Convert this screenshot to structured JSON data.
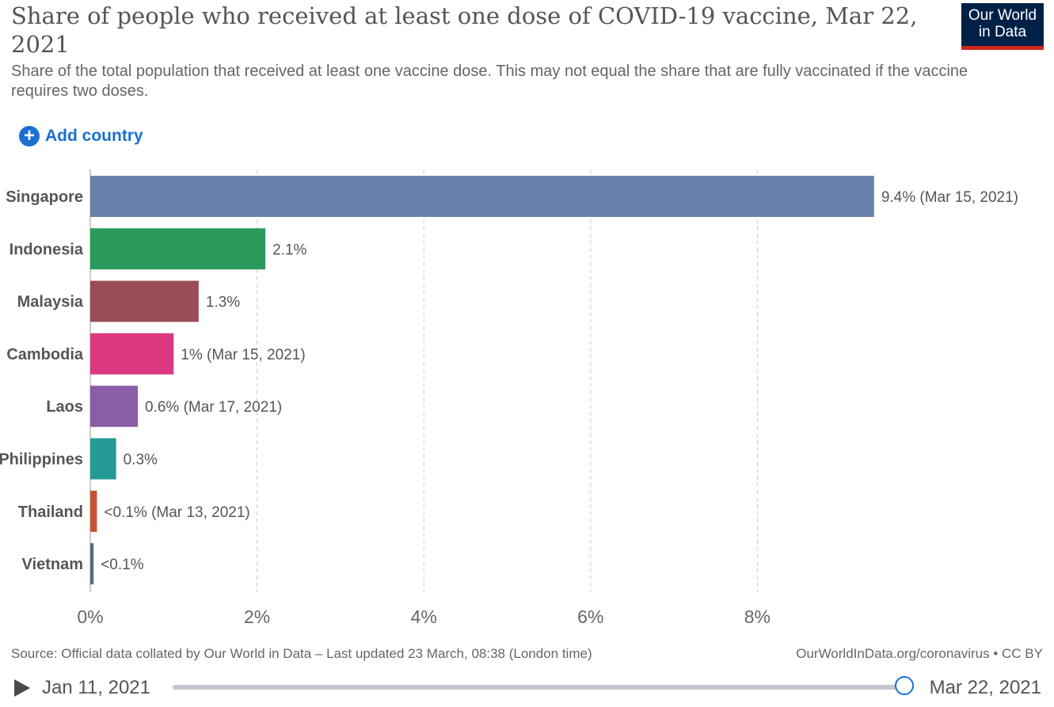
{
  "title": "Share of people who received at least one dose of COVID-19 vaccine, Mar 22, 2021",
  "subtitle": "Share of the total population that received at least one vaccine dose. This may not equal the share that are fully vaccinated if the vaccine requires two doses.",
  "logo": {
    "line1": "Our World",
    "line2": "in Data"
  },
  "add_country_label": "Add country",
  "chart_data": {
    "type": "bar",
    "orientation": "horizontal",
    "categories": [
      "Singapore",
      "Indonesia",
      "Malaysia",
      "Cambodia",
      "Laos",
      "Philippines",
      "Thailand",
      "Vietnam"
    ],
    "values": [
      9.4,
      2.1,
      1.3,
      1.0,
      0.57,
      0.31,
      0.08,
      0.04
    ],
    "labels": [
      "9.4% (Mar 15, 2021)",
      "2.1%",
      "1.3%",
      "1% (Mar 15, 2021)",
      "0.6% (Mar 17, 2021)",
      "0.3%",
      "<0.1% (Mar 13, 2021)",
      "<0.1%"
    ],
    "colors": [
      "#6980aa",
      "#2a9a5d",
      "#9b4d57",
      "#db3a82",
      "#8a5ea6",
      "#269a96",
      "#c35433",
      "#5d6985"
    ],
    "xlim": [
      0,
      10
    ],
    "xticks": [
      0,
      2,
      4,
      6,
      8
    ],
    "xtick_labels": [
      "0%",
      "2%",
      "4%",
      "6%",
      "8%"
    ],
    "grid": "vertical dashed"
  },
  "footer": {
    "source": "Source: Official data collated by Our World in Data – Last updated 23 March, 08:38 (London time)",
    "link": "OurWorldInData.org/coronavirus • CC BY"
  },
  "timeline": {
    "start_label": "Jan 11, 2021",
    "end_label": "Mar 22, 2021"
  }
}
